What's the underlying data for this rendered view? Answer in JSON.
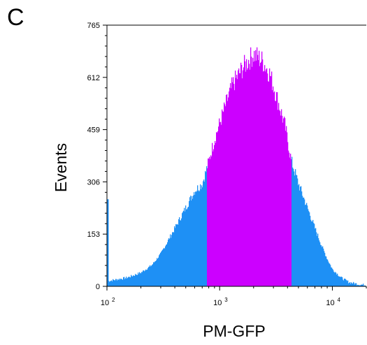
{
  "panel_label": "C",
  "colors": {
    "outer": "#1E90F5",
    "gated": "#CC00FF",
    "axis": "#000000"
  },
  "chart_data": {
    "type": "histogram",
    "title": "",
    "xlabel": "PM-GFP",
    "ylabel": "Events",
    "xscale": "log",
    "xlim": [
      100,
      20000
    ],
    "ylim": [
      0,
      765
    ],
    "yticks": [
      0,
      153,
      306,
      459,
      612,
      765
    ],
    "xticks": [
      {
        "value": 100,
        "base": "10",
        "exp": "2"
      },
      {
        "value": 1000,
        "base": "10",
        "exp": "3"
      },
      {
        "value": 10000,
        "base": "10",
        "exp": "4"
      }
    ],
    "gate": {
      "low": 760,
      "high": 4300
    },
    "first_bin_spike": 255,
    "series": [
      {
        "x": [
          100,
          150,
          200,
          250,
          300,
          400,
          500,
          600,
          700,
          760,
          900,
          1100,
          1300,
          1600,
          2000,
          2400,
          2800,
          3300,
          3800,
          4300,
          5000,
          6000,
          7000,
          8000,
          9000,
          10000,
          12000,
          14000,
          17000,
          20000
        ],
        "y": [
          15,
          25,
          40,
          62,
          95,
          170,
          230,
          280,
          300,
          340,
          430,
          520,
          590,
          640,
          680,
          660,
          620,
          540,
          470,
          370,
          300,
          230,
          170,
          120,
          80,
          50,
          25,
          12,
          6,
          3
        ]
      }
    ]
  }
}
